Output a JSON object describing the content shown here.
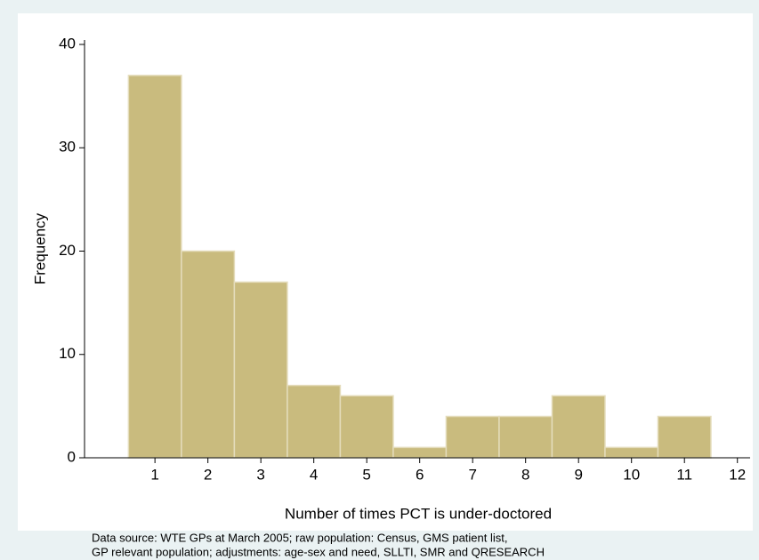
{
  "chart_data": {
    "type": "histogram",
    "xlabel": "Number of times PCT is under-doctored",
    "ylabel": "Frequency",
    "note": [
      "Data source: WTE GPs at March 2005; raw population: Census, GMS patient list,",
      "GP relevant population; adjustments: age-sex and need, SLLTI, SMR and QRESEARCH"
    ],
    "bins": [
      0.5,
      1.5,
      2.5,
      3.5,
      4.5,
      5.5,
      6.5,
      7.5,
      8.5,
      9.5,
      10.5,
      11.5
    ],
    "values": [
      37,
      20,
      17,
      7,
      6,
      1,
      4,
      4,
      6,
      1,
      4
    ],
    "color": "#c9bb7e",
    "xlim": [
      -0.33,
      12.24
    ],
    "xticks": [
      1,
      2,
      3,
      4,
      5,
      6,
      7,
      8,
      9,
      10,
      11,
      12
    ],
    "ylim": [
      0,
      40
    ],
    "yticks": [
      0,
      10,
      20,
      30,
      40
    ]
  }
}
